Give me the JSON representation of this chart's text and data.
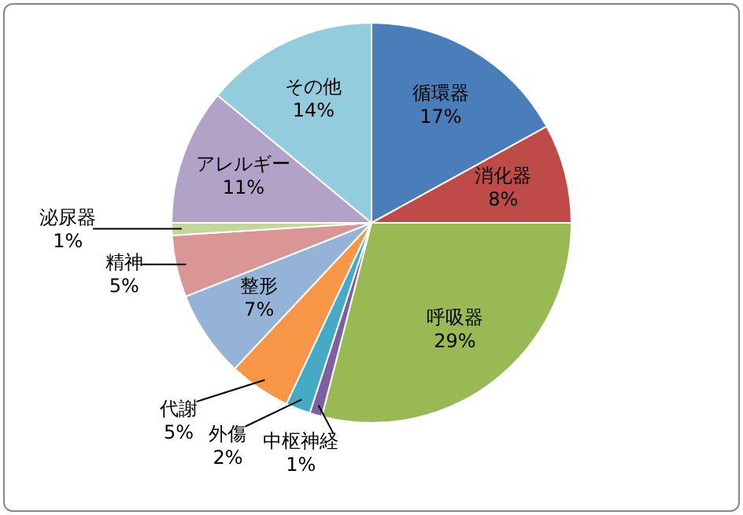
{
  "chart_data": {
    "type": "pie",
    "categories": [
      "循環器",
      "消化器",
      "呼吸器",
      "中枢神経",
      "外傷",
      "代謝",
      "整形",
      "精神",
      "泌尿器",
      "アレルギー",
      "その他"
    ],
    "values": [
      17,
      8,
      29,
      1,
      2,
      5,
      7,
      5,
      1,
      11,
      14
    ],
    "colors": [
      "#4a7ebb",
      "#be4b48",
      "#98b954",
      "#7d60a0",
      "#46aac5",
      "#f79646",
      "#95b3d7",
      "#d99694",
      "#c3d69b",
      "#b3a2c7",
      "#93cddd"
    ],
    "value_labels": [
      "17%",
      "8%",
      "29%",
      "1%",
      "2%",
      "5%",
      "7%",
      "5%",
      "1%",
      "11%",
      "14%"
    ],
    "legend": false
  }
}
